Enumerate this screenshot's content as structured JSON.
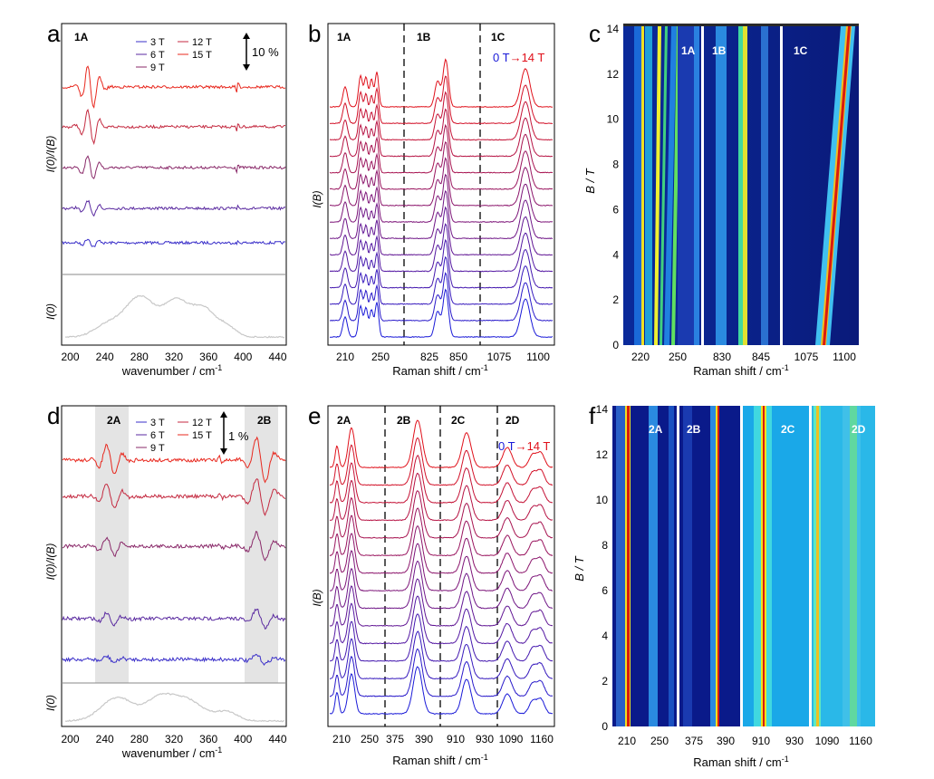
{
  "figure": {
    "panels": [
      {
        "letter": "a",
        "type": "line",
        "xlabel": "wavenumber / cm",
        "xlabel_sup": "-1",
        "ylabel_top": "I(0)/I(B)",
        "ylabel_bottom": "I(0)",
        "xlim": [
          190,
          450
        ],
        "xticks": [
          "200",
          "240",
          "280",
          "320",
          "360",
          "400",
          "440"
        ],
        "region_labels": [
          "1A"
        ],
        "legend": [
          "3 T",
          "6 T",
          "9 T",
          "12 T",
          "15 T"
        ],
        "scale_bar": "10 %",
        "series": [
          {
            "name": "3 T",
            "color": "#3a2fc9"
          },
          {
            "name": "6 T",
            "color": "#5a2aa0"
          },
          {
            "name": "9 T",
            "color": "#8a2a6a"
          },
          {
            "name": "12 T",
            "color": "#c42a40"
          },
          {
            "name": "15 T",
            "color": "#e8281e"
          }
        ]
      },
      {
        "letter": "b",
        "type": "line",
        "xlabel": "Raman shift / cm",
        "xlabel_sup": "-1",
        "ylabel": "I(B)",
        "segments": [
          {
            "label": "1A",
            "ticks": [
              "210",
              "250"
            ],
            "peaks": [
              205,
              222,
              232,
              240,
              248
            ]
          },
          {
            "label": "1B",
            "ticks": [
              "825",
              "850"
            ],
            "peaks": [
              830,
              838,
              845
            ]
          },
          {
            "label": "1C",
            "ticks": [
              "1075",
              "1100"
            ],
            "peaks": [
              1088
            ]
          }
        ],
        "field_label_start": "0 T",
        "field_label_end": "14 T",
        "arrow": "→",
        "trace_count": 15
      },
      {
        "letter": "c",
        "type": "heatmap",
        "xlabel": "Raman shift / cm",
        "xlabel_sup": "-1",
        "ylabel": "B / T",
        "yticks": [
          "0",
          "2",
          "4",
          "6",
          "8",
          "10",
          "12",
          "14"
        ],
        "ylim": [
          0,
          14
        ],
        "segments": [
          {
            "label": "1A",
            "ticks": [
              "220",
              "250"
            ]
          },
          {
            "label": "1B",
            "ticks": [
              "830",
              "845"
            ]
          },
          {
            "label": "1C",
            "ticks": [
              "1075",
              "1100"
            ]
          }
        ]
      },
      {
        "letter": "d",
        "type": "line",
        "xlabel": "wavenumber / cm",
        "xlabel_sup": "-1",
        "ylabel_top": "I(0)/I(B)",
        "ylabel_bottom": "I(0)",
        "xlim": [
          190,
          450
        ],
        "xticks": [
          "200",
          "240",
          "280",
          "320",
          "360",
          "400",
          "440"
        ],
        "region_labels": [
          "2A",
          "2B"
        ],
        "legend": [
          "3 T",
          "6 T",
          "9 T",
          "12 T",
          "15 T"
        ],
        "scale_bar": "1 %",
        "series": [
          {
            "name": "3 T",
            "color": "#3a2fc9"
          },
          {
            "name": "6 T",
            "color": "#5a2aa0"
          },
          {
            "name": "9 T",
            "color": "#8a2a6a"
          },
          {
            "name": "12 T",
            "color": "#c42a40"
          },
          {
            "name": "15 T",
            "color": "#e8281e"
          }
        ]
      },
      {
        "letter": "e",
        "type": "line",
        "xlabel": "Raman shift / cm",
        "xlabel_sup": "-1",
        "ylabel": "I(B)",
        "segments": [
          {
            "label": "2A",
            "ticks": [
              "210",
              "250"
            ],
            "peaks": [
              212,
              225
            ]
          },
          {
            "label": "2B",
            "ticks": [
              "375",
              "390"
            ],
            "peaks": [
              388
            ]
          },
          {
            "label": "2C",
            "ticks": [
              "910",
              "930"
            ],
            "peaks": [
              915
            ]
          },
          {
            "label": "2D",
            "ticks": [
              "1090",
              "1160"
            ],
            "peaks": [
              1085,
              1120,
              1150
            ]
          }
        ],
        "field_label_start": "0 T",
        "field_label_end": "14 T",
        "arrow": "→",
        "trace_count": 15
      },
      {
        "letter": "f",
        "type": "heatmap",
        "xlabel": "Raman shift / cm",
        "xlabel_sup": "-1",
        "ylabel": "B / T",
        "yticks": [
          "0",
          "2",
          "4",
          "6",
          "8",
          "10",
          "12",
          "14"
        ],
        "ylim": [
          0,
          14
        ],
        "segments": [
          {
            "label": "2A",
            "ticks": [
              "210",
              "250"
            ]
          },
          {
            "label": "2B",
            "ticks": [
              "375",
              "390"
            ]
          },
          {
            "label": "2C",
            "ticks": [
              "910",
              "930"
            ]
          },
          {
            "label": "2D",
            "ticks": [
              "1090",
              "1160"
            ]
          }
        ]
      }
    ]
  },
  "chart_data": [
    {
      "type": "line",
      "panel": "a",
      "xlim": [
        190,
        450
      ],
      "series_names": [
        "3 T",
        "6 T",
        "9 T",
        "12 T",
        "15 T"
      ]
    },
    {
      "type": "line",
      "panel": "b",
      "series_count": 15,
      "field_range_T": [
        0,
        14
      ]
    },
    {
      "type": "heatmap",
      "panel": "c",
      "ylim": [
        0,
        14
      ]
    },
    {
      "type": "line",
      "panel": "d",
      "xlim": [
        190,
        450
      ],
      "series_names": [
        "3 T",
        "6 T",
        "9 T",
        "12 T",
        "15 T"
      ]
    },
    {
      "type": "line",
      "panel": "e",
      "series_count": 15,
      "field_range_T": [
        0,
        14
      ]
    },
    {
      "type": "heatmap",
      "panel": "f",
      "ylim": [
        0,
        14
      ]
    }
  ],
  "colors": {
    "blue": "#1a1ad8",
    "red": "#e0101a",
    "grey_band": "#e4e4e4",
    "heat_low": "#0a1a8a",
    "heat_high": "#d81a10"
  }
}
